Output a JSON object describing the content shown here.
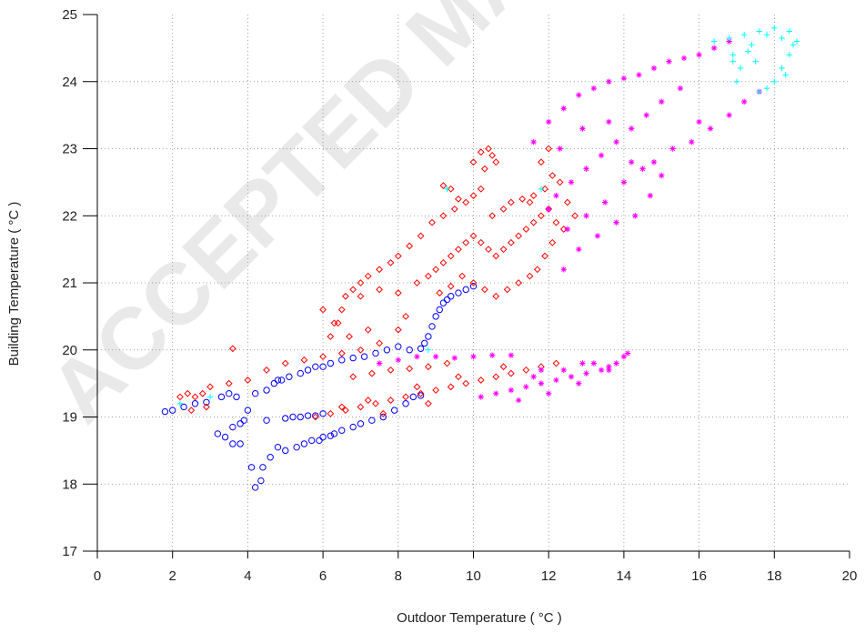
{
  "chart_data": {
    "type": "scatter",
    "title": "",
    "xlabel": "Outdoor Temperature ( °C )",
    "ylabel": "Building Temperature ( °C )",
    "xlim": [
      0,
      20
    ],
    "ylim": [
      17,
      25
    ],
    "x_ticks": [
      "0",
      "2",
      "4",
      "6",
      "8",
      "10",
      "12",
      "14",
      "16",
      "18",
      "20"
    ],
    "y_ticks": [
      "17",
      "18",
      "19",
      "20",
      "21",
      "22",
      "23",
      "24",
      "25"
    ],
    "grid": true,
    "legend": "none",
    "watermark_text": "ACCEPTED MANUSCRIPT",
    "series": [
      {
        "marker": "circle",
        "color": "#0000ff",
        "points": [
          [
            1.8,
            19.08
          ],
          [
            2.0,
            19.1
          ],
          [
            2.3,
            19.15
          ],
          [
            2.6,
            19.2
          ],
          [
            2.9,
            19.22
          ],
          [
            3.3,
            19.3
          ],
          [
            3.5,
            19.35
          ],
          [
            3.7,
            19.3
          ],
          [
            3.2,
            18.75
          ],
          [
            3.4,
            18.7
          ],
          [
            3.6,
            18.6
          ],
          [
            3.8,
            18.6
          ],
          [
            3.6,
            18.85
          ],
          [
            3.8,
            18.9
          ],
          [
            3.9,
            18.95
          ],
          [
            4.0,
            19.1
          ],
          [
            4.1,
            18.25
          ],
          [
            4.2,
            17.95
          ],
          [
            4.35,
            18.05
          ],
          [
            4.4,
            18.25
          ],
          [
            4.6,
            18.4
          ],
          [
            4.8,
            18.55
          ],
          [
            5.0,
            18.5
          ],
          [
            5.3,
            18.55
          ],
          [
            5.5,
            18.6
          ],
          [
            5.7,
            18.65
          ],
          [
            5.9,
            18.65
          ],
          [
            6.0,
            18.7
          ],
          [
            6.2,
            18.72
          ],
          [
            6.5,
            18.8
          ],
          [
            6.8,
            18.85
          ],
          [
            7.0,
            18.9
          ],
          [
            7.3,
            18.95
          ],
          [
            7.6,
            19.0
          ],
          [
            7.9,
            19.1
          ],
          [
            8.2,
            19.2
          ],
          [
            8.4,
            19.3
          ],
          [
            8.6,
            19.32
          ],
          [
            4.5,
            18.95
          ],
          [
            5.0,
            18.98
          ],
          [
            5.2,
            19.0
          ],
          [
            5.4,
            19.0
          ],
          [
            5.6,
            19.02
          ],
          [
            5.8,
            19.02
          ],
          [
            6.0,
            19.05
          ],
          [
            4.2,
            19.35
          ],
          [
            4.5,
            19.4
          ],
          [
            4.7,
            19.5
          ],
          [
            4.9,
            19.55
          ],
          [
            5.1,
            19.6
          ],
          [
            5.4,
            19.65
          ],
          [
            5.6,
            19.7
          ],
          [
            5.8,
            19.75
          ],
          [
            6.0,
            19.75
          ],
          [
            6.2,
            19.8
          ],
          [
            6.5,
            19.85
          ],
          [
            6.8,
            19.88
          ],
          [
            7.1,
            19.9
          ],
          [
            7.4,
            19.95
          ],
          [
            7.7,
            20.0
          ],
          [
            8.0,
            20.05
          ],
          [
            8.3,
            20.0
          ],
          [
            8.6,
            20.02
          ],
          [
            8.7,
            20.1
          ],
          [
            8.8,
            20.2
          ],
          [
            8.9,
            20.35
          ],
          [
            9.0,
            20.5
          ],
          [
            9.1,
            20.6
          ],
          [
            9.2,
            20.7
          ],
          [
            9.3,
            20.75
          ],
          [
            9.4,
            20.8
          ],
          [
            9.6,
            20.85
          ],
          [
            9.8,
            20.9
          ],
          [
            10.0,
            20.95
          ],
          [
            4.8,
            19.55
          ],
          [
            6.3,
            18.75
          ]
        ]
      },
      {
        "marker": "diamond",
        "color": "#ff0000",
        "points": [
          [
            2.2,
            19.3
          ],
          [
            2.4,
            19.35
          ],
          [
            2.6,
            19.3
          ],
          [
            2.8,
            19.35
          ],
          [
            3.0,
            19.45
          ],
          [
            2.5,
            19.1
          ],
          [
            2.9,
            19.15
          ],
          [
            3.6,
            20.02
          ],
          [
            3.5,
            19.5
          ],
          [
            4.0,
            19.55
          ],
          [
            4.5,
            19.7
          ],
          [
            5.0,
            19.8
          ],
          [
            5.5,
            19.85
          ],
          [
            6.0,
            19.9
          ],
          [
            6.5,
            19.95
          ],
          [
            7.0,
            20.0
          ],
          [
            7.5,
            20.1
          ],
          [
            8.0,
            20.3
          ],
          [
            6.2,
            20.2
          ],
          [
            6.4,
            20.4
          ],
          [
            6.5,
            20.6
          ],
          [
            6.6,
            20.8
          ],
          [
            6.8,
            20.9
          ],
          [
            7.0,
            21.0
          ],
          [
            7.2,
            21.1
          ],
          [
            7.5,
            21.2
          ],
          [
            7.8,
            21.3
          ],
          [
            8.0,
            21.4
          ],
          [
            8.3,
            21.55
          ],
          [
            8.6,
            21.7
          ],
          [
            8.9,
            21.9
          ],
          [
            9.2,
            22.0
          ],
          [
            9.5,
            22.1
          ],
          [
            9.8,
            22.2
          ],
          [
            10.0,
            22.3
          ],
          [
            10.2,
            22.4
          ],
          [
            9.4,
            22.4
          ],
          [
            9.6,
            22.25
          ],
          [
            9.2,
            22.45
          ],
          [
            10.0,
            22.8
          ],
          [
            10.2,
            22.95
          ],
          [
            10.4,
            23.0
          ],
          [
            10.5,
            22.9
          ],
          [
            10.6,
            22.8
          ],
          [
            10.3,
            22.7
          ],
          [
            12.0,
            23.0
          ],
          [
            11.8,
            22.8
          ],
          [
            12.1,
            22.6
          ],
          [
            12.3,
            22.5
          ],
          [
            11.9,
            22.4
          ],
          [
            11.6,
            22.3
          ],
          [
            8.5,
            21.0
          ],
          [
            8.8,
            21.1
          ],
          [
            9.0,
            21.2
          ],
          [
            9.2,
            21.3
          ],
          [
            9.4,
            21.4
          ],
          [
            9.6,
            21.5
          ],
          [
            9.8,
            21.6
          ],
          [
            10.0,
            21.7
          ],
          [
            10.2,
            21.6
          ],
          [
            10.4,
            21.5
          ],
          [
            10.6,
            21.4
          ],
          [
            10.8,
            21.5
          ],
          [
            11.0,
            21.6
          ],
          [
            11.2,
            21.7
          ],
          [
            11.4,
            21.8
          ],
          [
            11.6,
            21.9
          ],
          [
            11.8,
            22.0
          ],
          [
            12.0,
            22.1
          ],
          [
            12.2,
            21.9
          ],
          [
            12.4,
            21.8
          ],
          [
            12.1,
            21.6
          ],
          [
            11.9,
            21.4
          ],
          [
            11.7,
            21.2
          ],
          [
            11.5,
            21.1
          ],
          [
            11.2,
            21.0
          ],
          [
            10.9,
            20.9
          ],
          [
            10.6,
            20.8
          ],
          [
            10.3,
            20.9
          ],
          [
            10.0,
            21.0
          ],
          [
            9.7,
            21.1
          ],
          [
            9.4,
            20.95
          ],
          [
            9.1,
            20.85
          ],
          [
            7.0,
            20.8
          ],
          [
            7.5,
            20.9
          ],
          [
            8.0,
            20.85
          ],
          [
            6.0,
            20.6
          ],
          [
            6.3,
            20.4
          ],
          [
            6.7,
            20.2
          ],
          [
            7.2,
            20.3
          ],
          [
            8.2,
            20.5
          ],
          [
            10.5,
            22.0
          ],
          [
            10.8,
            22.1
          ],
          [
            11.0,
            22.2
          ],
          [
            11.3,
            22.25
          ],
          [
            11.5,
            22.2
          ],
          [
            12.5,
            22.2
          ],
          [
            12.7,
            22.0
          ],
          [
            5.8,
            19.0
          ],
          [
            6.2,
            19.05
          ],
          [
            6.6,
            19.1
          ],
          [
            7.0,
            19.15
          ],
          [
            7.4,
            19.2
          ],
          [
            7.8,
            19.25
          ],
          [
            8.2,
            19.3
          ],
          [
            8.6,
            19.35
          ],
          [
            9.0,
            19.4
          ],
          [
            9.4,
            19.45
          ],
          [
            9.8,
            19.5
          ],
          [
            10.2,
            19.55
          ],
          [
            10.6,
            19.6
          ],
          [
            11.0,
            19.65
          ],
          [
            11.4,
            19.7
          ],
          [
            11.8,
            19.75
          ],
          [
            12.2,
            19.8
          ],
          [
            6.8,
            19.6
          ],
          [
            7.3,
            19.65
          ],
          [
            7.8,
            19.7
          ],
          [
            8.3,
            19.72
          ],
          [
            8.8,
            19.75
          ],
          [
            9.3,
            19.8
          ],
          [
            6.5,
            19.15
          ],
          [
            7.2,
            19.25
          ],
          [
            8.5,
            19.45
          ],
          [
            9.6,
            19.6
          ],
          [
            10.8,
            19.75
          ],
          [
            7.6,
            19.05
          ],
          [
            8.8,
            19.2
          ]
        ]
      },
      {
        "marker": "star",
        "color": "#ff00ff",
        "points": [
          [
            7.5,
            19.8
          ],
          [
            8.0,
            19.85
          ],
          [
            8.5,
            19.9
          ],
          [
            9.0,
            19.9
          ],
          [
            9.5,
            19.88
          ],
          [
            10.0,
            19.9
          ],
          [
            10.5,
            19.92
          ],
          [
            11.0,
            19.92
          ],
          [
            10.2,
            19.3
          ],
          [
            10.6,
            19.35
          ],
          [
            11.0,
            19.4
          ],
          [
            11.4,
            19.45
          ],
          [
            11.8,
            19.5
          ],
          [
            12.2,
            19.55
          ],
          [
            12.6,
            19.6
          ],
          [
            13.0,
            19.65
          ],
          [
            13.4,
            19.7
          ],
          [
            13.8,
            19.8
          ],
          [
            14.0,
            19.9
          ],
          [
            14.1,
            19.95
          ],
          [
            13.6,
            19.75
          ],
          [
            12.8,
            19.5
          ],
          [
            11.6,
            19.6
          ],
          [
            12.4,
            19.7
          ],
          [
            13.2,
            19.8
          ],
          [
            11.2,
            19.25
          ],
          [
            12.0,
            19.35
          ],
          [
            13.6,
            19.7
          ],
          [
            12.9,
            19.8
          ],
          [
            11.8,
            19.7
          ],
          [
            11.6,
            23.1
          ],
          [
            12.0,
            23.4
          ],
          [
            12.4,
            23.6
          ],
          [
            12.8,
            23.8
          ],
          [
            13.2,
            23.9
          ],
          [
            13.6,
            24.0
          ],
          [
            14.0,
            24.05
          ],
          [
            14.4,
            24.1
          ],
          [
            14.8,
            24.2
          ],
          [
            15.2,
            24.3
          ],
          [
            15.6,
            24.35
          ],
          [
            16.0,
            24.4
          ],
          [
            16.4,
            24.5
          ],
          [
            16.8,
            24.6
          ],
          [
            15.5,
            23.9
          ],
          [
            15.0,
            23.7
          ],
          [
            14.6,
            23.5
          ],
          [
            14.2,
            23.3
          ],
          [
            13.8,
            23.1
          ],
          [
            13.4,
            22.9
          ],
          [
            13.0,
            22.7
          ],
          [
            12.6,
            22.5
          ],
          [
            12.2,
            22.3
          ],
          [
            12.0,
            22.1
          ],
          [
            12.5,
            21.8
          ],
          [
            13.0,
            22.0
          ],
          [
            13.5,
            22.2
          ],
          [
            14.0,
            22.5
          ],
          [
            14.5,
            22.7
          ],
          [
            14.8,
            22.8
          ],
          [
            15.0,
            22.6
          ],
          [
            14.7,
            22.3
          ],
          [
            14.3,
            22.0
          ],
          [
            13.8,
            21.9
          ],
          [
            13.3,
            21.7
          ],
          [
            12.8,
            21.5
          ],
          [
            12.4,
            21.2
          ],
          [
            15.8,
            23.1
          ],
          [
            16.3,
            23.3
          ],
          [
            16.8,
            23.5
          ],
          [
            17.2,
            23.7
          ],
          [
            17.6,
            23.85
          ],
          [
            14.2,
            22.8
          ],
          [
            13.6,
            23.4
          ],
          [
            12.9,
            23.3
          ],
          [
            12.3,
            23.0
          ],
          [
            15.3,
            23.0
          ],
          [
            16.0,
            23.4
          ]
        ]
      },
      {
        "marker": "plus",
        "color": "#00ffff",
        "points": [
          [
            16.4,
            24.6
          ],
          [
            16.8,
            24.65
          ],
          [
            17.2,
            24.7
          ],
          [
            17.6,
            24.75
          ],
          [
            18.0,
            24.8
          ],
          [
            18.4,
            24.75
          ],
          [
            18.6,
            24.6
          ],
          [
            18.4,
            24.4
          ],
          [
            18.2,
            24.2
          ],
          [
            18.0,
            24.0
          ],
          [
            17.8,
            23.9
          ],
          [
            17.6,
            23.85
          ],
          [
            17.1,
            24.2
          ],
          [
            16.9,
            24.4
          ],
          [
            17.4,
            24.55
          ],
          [
            17.8,
            24.7
          ],
          [
            18.2,
            24.65
          ],
          [
            18.5,
            24.55
          ],
          [
            16.9,
            24.3
          ],
          [
            17.3,
            24.45
          ],
          [
            18.3,
            24.1
          ],
          [
            17.0,
            24.0
          ],
          [
            17.5,
            24.3
          ],
          [
            9.3,
            22.4
          ],
          [
            11.8,
            22.4
          ],
          [
            3.0,
            19.3
          ],
          [
            2.2,
            19.2
          ],
          [
            8.8,
            20.0
          ]
        ]
      }
    ]
  }
}
